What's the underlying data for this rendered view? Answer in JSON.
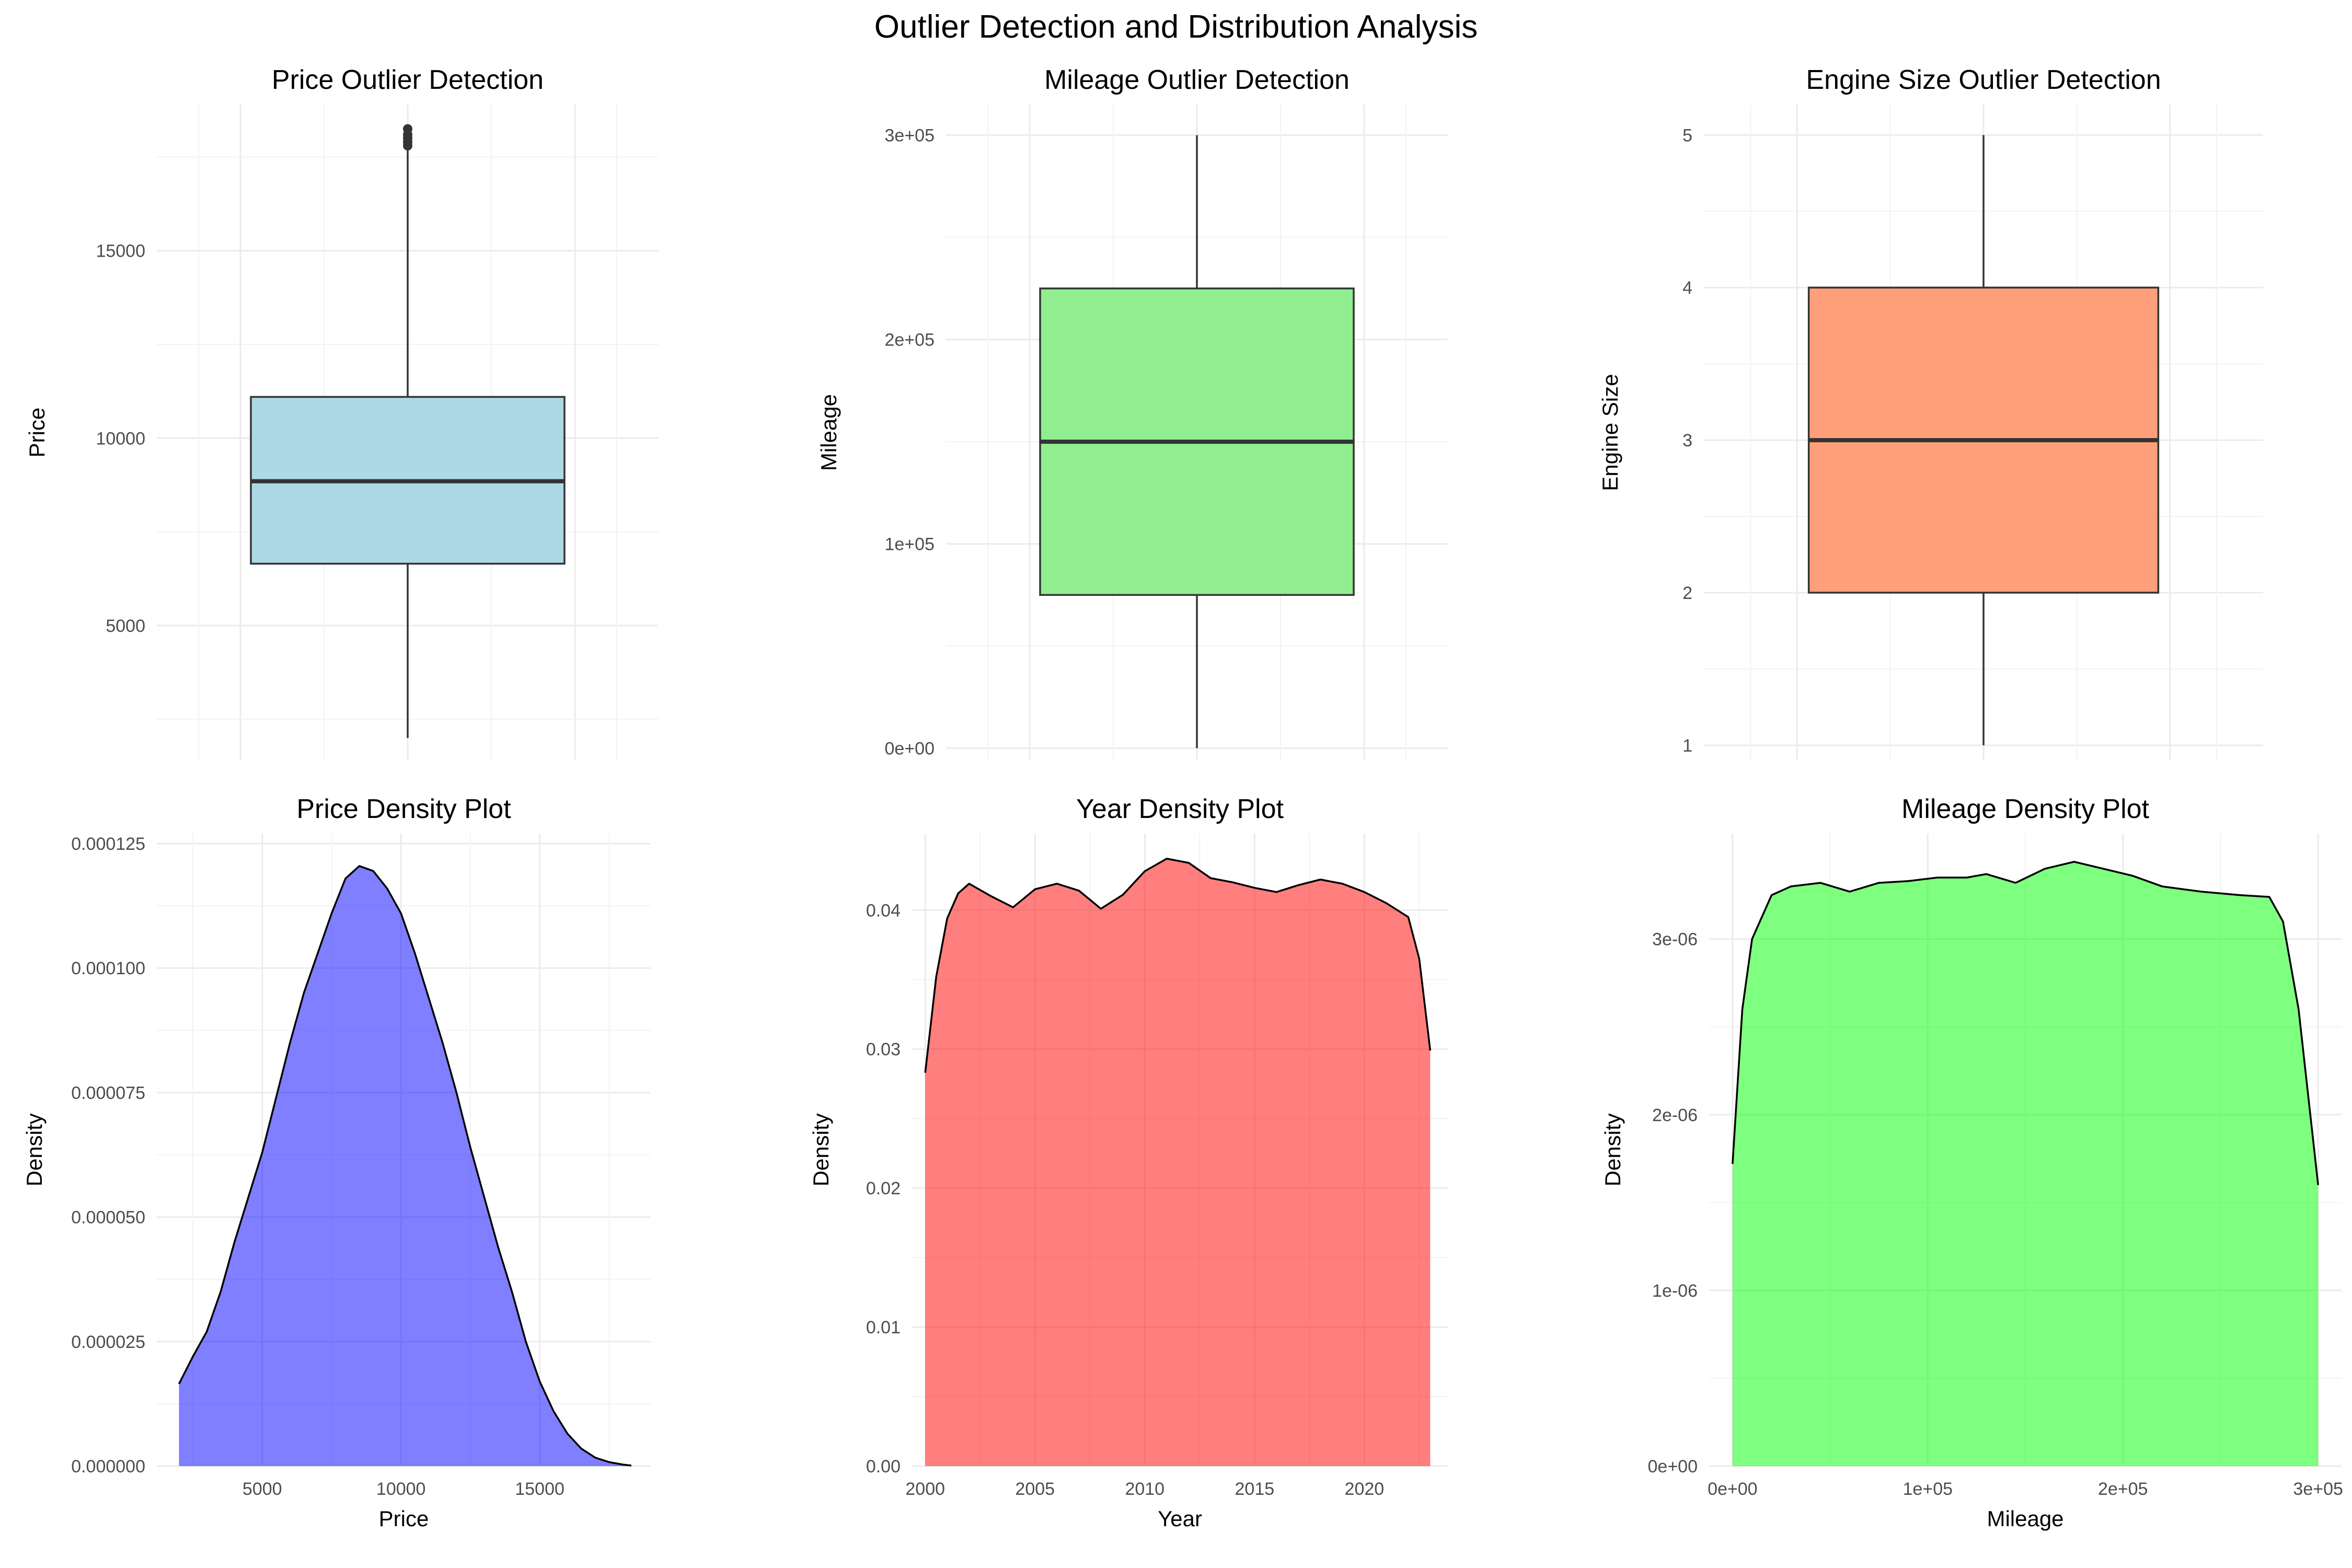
{
  "title": "Outlier Detection and Distribution Analysis",
  "chart_data": [
    {
      "id": "price-box",
      "type": "box",
      "title": "Price Outlier Detection",
      "xlabel": "",
      "ylabel": "Price",
      "ylim": [
        1400,
        18900
      ],
      "yticks": [
        5000,
        10000,
        15000
      ],
      "yticklabels": [
        "5000",
        "10000",
        "15000"
      ],
      "stats": {
        "min": 2000,
        "q1": 6650,
        "median": 8850,
        "q3": 11100,
        "max": 17750
      },
      "outliers": [
        17800,
        17900,
        18000,
        18100,
        18250
      ],
      "fill": "#add8e6"
    },
    {
      "id": "mileage-box",
      "type": "box",
      "title": "Mileage Outlier Detection",
      "xlabel": "",
      "ylabel": "Mileage",
      "ylim": [
        -6000,
        315000
      ],
      "yticks": [
        0,
        100000,
        200000,
        300000
      ],
      "yticklabels": [
        "0e+00",
        "1e+05",
        "2e+05",
        "3e+05"
      ],
      "stats": {
        "min": 0,
        "q1": 75000,
        "median": 150000,
        "q3": 225000,
        "max": 300000
      },
      "outliers": [],
      "fill": "#90ee90"
    },
    {
      "id": "engine-box",
      "type": "box",
      "title": "Engine Size Outlier Detection",
      "xlabel": "",
      "ylabel": "Engine Size",
      "ylim": [
        0.9,
        5.2
      ],
      "yticks": [
        1,
        2,
        3,
        4,
        5
      ],
      "yticklabels": [
        "1",
        "2",
        "3",
        "4",
        "5"
      ],
      "stats": {
        "min": 1,
        "q1": 2,
        "median": 3,
        "q3": 4,
        "max": 5
      },
      "outliers": [],
      "fill": "#ffa07a"
    },
    {
      "id": "price-density",
      "type": "area",
      "title": "Price Density Plot",
      "xlabel": "Price",
      "ylabel": "Density",
      "xlim": [
        1200,
        19000
      ],
      "ylim": [
        0,
        0.000127
      ],
      "xticks": [
        5000,
        10000,
        15000
      ],
      "xticklabels": [
        "5000",
        "10000",
        "15000"
      ],
      "yticks": [
        0,
        2.5e-05,
        5e-05,
        7.5e-05,
        0.0001,
        0.000125
      ],
      "yticklabels": [
        "0.000000",
        "0.000025",
        "0.000050",
        "0.000075",
        "0.000100",
        "0.000125"
      ],
      "fill": "#0000ff",
      "fill_opacity": 0.5,
      "x": [
        2000,
        2500,
        3000,
        3500,
        4000,
        4500,
        5000,
        5500,
        6000,
        6500,
        7000,
        7500,
        8000,
        8500,
        9000,
        9500,
        10000,
        10500,
        11000,
        11500,
        12000,
        12500,
        13000,
        13500,
        14000,
        14500,
        15000,
        15500,
        16000,
        16500,
        17000,
        17500,
        18000,
        18300
      ],
      "y": [
        1.65e-05,
        2.2e-05,
        2.7e-05,
        3.5e-05,
        4.5e-05,
        5.4e-05,
        6.3e-05,
        7.4e-05,
        8.5e-05,
        9.5e-05,
        0.000103,
        0.000111,
        0.000118,
        0.0001205,
        0.0001195,
        0.000116,
        0.000111,
        0.000103,
        9.4e-05,
        8.5e-05,
        7.5e-05,
        6.4e-05,
        5.4e-05,
        4.4e-05,
        3.5e-05,
        2.5e-05,
        1.7e-05,
        1.1e-05,
        6.5e-06,
        3.5e-06,
        1.7e-06,
        8e-07,
        3e-07,
        1e-07
      ]
    },
    {
      "id": "year-density",
      "type": "area",
      "title": "Year Density Plot",
      "xlabel": "Year",
      "ylabel": "Density",
      "xlim": [
        1999.4,
        2023.8
      ],
      "ylim": [
        0,
        0.0455
      ],
      "xticks": [
        2000,
        2005,
        2010,
        2015,
        2020
      ],
      "xticklabels": [
        "2000",
        "2005",
        "2010",
        "2015",
        "2020"
      ],
      "yticks": [
        0,
        0.01,
        0.02,
        0.03,
        0.04
      ],
      "yticklabels": [
        "0.00",
        "0.01",
        "0.02",
        "0.03",
        "0.04"
      ],
      "fill": "#ff0000",
      "fill_opacity": 0.5,
      "x": [
        2000,
        2000.5,
        2001,
        2001.5,
        2002,
        2003,
        2004,
        2005,
        2006,
        2007,
        2008,
        2009,
        2010,
        2011,
        2012,
        2013,
        2014,
        2015,
        2016,
        2017,
        2018,
        2019,
        2020,
        2021,
        2022,
        2022.5,
        2023
      ],
      "y": [
        0.0283,
        0.0352,
        0.0394,
        0.0412,
        0.0419,
        0.041,
        0.0402,
        0.0415,
        0.0419,
        0.0414,
        0.0401,
        0.0411,
        0.0428,
        0.0437,
        0.0434,
        0.0423,
        0.042,
        0.0416,
        0.0413,
        0.0418,
        0.0422,
        0.0419,
        0.0413,
        0.0405,
        0.0395,
        0.0365,
        0.0299
      ]
    },
    {
      "id": "mileage-density",
      "type": "area",
      "title": "Mileage Density Plot",
      "xlabel": "Mileage",
      "ylabel": "Density",
      "xlim": [
        -12000,
        312000
      ],
      "ylim": [
        0,
        3.6e-06
      ],
      "xticks": [
        0,
        100000,
        200000,
        300000
      ],
      "xticklabels": [
        "0e+00",
        "1e+05",
        "2e+05",
        "3e+05"
      ],
      "yticks": [
        0,
        1e-06,
        2e-06,
        3e-06
      ],
      "yticklabels": [
        "0e+00",
        "1e-06",
        "2e-06",
        "3e-06"
      ],
      "fill": "#00ff00",
      "fill_opacity": 0.5,
      "x": [
        0,
        5000,
        10000,
        20000,
        30000,
        45000,
        60000,
        75000,
        90000,
        105000,
        120000,
        130000,
        145000,
        160000,
        175000,
        190000,
        205000,
        220000,
        240000,
        260000,
        275000,
        282000,
        290000,
        300000
      ],
      "y": [
        1.72e-06,
        2.6e-06,
        3e-06,
        3.25e-06,
        3.3e-06,
        3.32e-06,
        3.27e-06,
        3.32e-06,
        3.33e-06,
        3.35e-06,
        3.35e-06,
        3.37e-06,
        3.32e-06,
        3.4e-06,
        3.44e-06,
        3.4e-06,
        3.36e-06,
        3.3e-06,
        3.27e-06,
        3.25e-06,
        3.24e-06,
        3.1e-06,
        2.6e-06,
        1.6e-06
      ]
    }
  ]
}
